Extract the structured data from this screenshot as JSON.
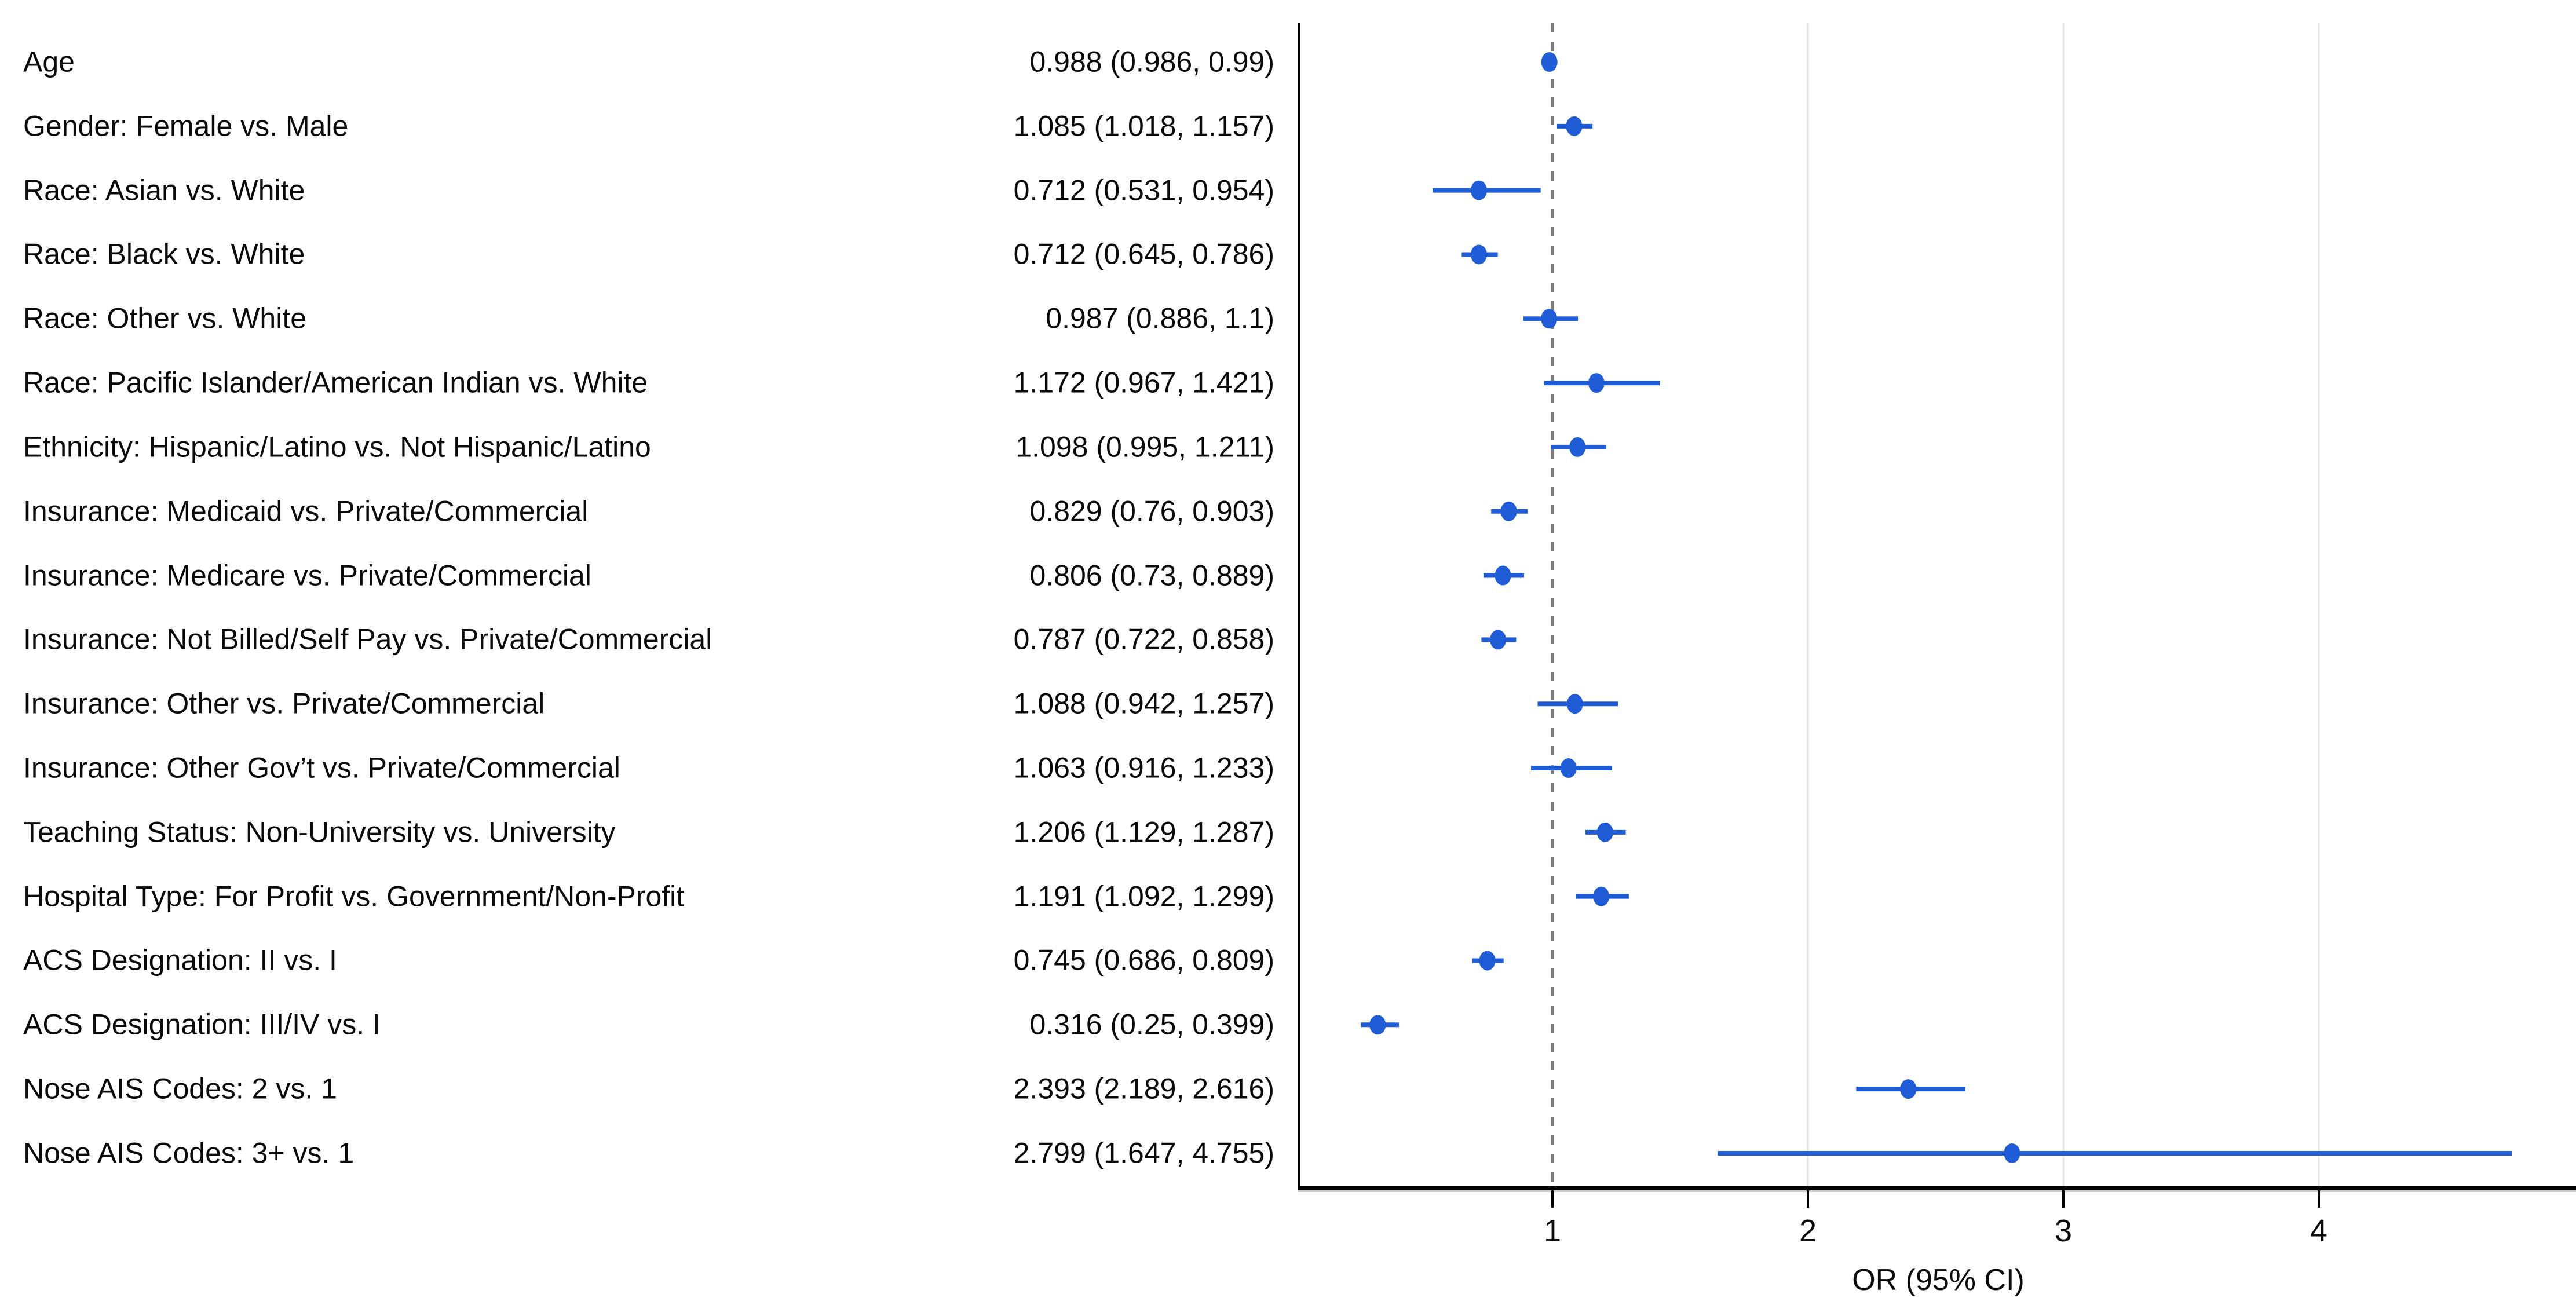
{
  "chart_data": {
    "type": "scatter",
    "variant": "forest-plot",
    "title": "",
    "xlabel": "OR (95% CI)",
    "ylabel": "",
    "x_ticks": [
      1,
      2,
      3,
      4
    ],
    "xlim": [
      0.01,
      5.0
    ],
    "reference_line_x": 1,
    "grid": {
      "vertical_gridlines_at": [
        2,
        3,
        4
      ],
      "dashed_reference_at": 1,
      "horizontal_gridlines": false
    },
    "legend_position": "none",
    "rows": [
      {
        "label": "Age",
        "value_label": "0.988 (0.986, 0.99)",
        "or": 0.988,
        "ci_low": 0.986,
        "ci_high": 0.99
      },
      {
        "label": "Gender: Female vs. Male",
        "value_label": "1.085 (1.018, 1.157)",
        "or": 1.085,
        "ci_low": 1.018,
        "ci_high": 1.157
      },
      {
        "label": "Race: Asian vs. White",
        "value_label": "0.712 (0.531, 0.954)",
        "or": 0.712,
        "ci_low": 0.531,
        "ci_high": 0.954
      },
      {
        "label": "Race: Black vs. White",
        "value_label": "0.712 (0.645, 0.786)",
        "or": 0.712,
        "ci_low": 0.645,
        "ci_high": 0.786
      },
      {
        "label": "Race: Other vs. White",
        "value_label": "0.987 (0.886, 1.1)",
        "or": 0.987,
        "ci_low": 0.886,
        "ci_high": 1.1
      },
      {
        "label": "Race: Pacific Islander/American Indian vs. White",
        "value_label": "1.172 (0.967, 1.421)",
        "or": 1.172,
        "ci_low": 0.967,
        "ci_high": 1.421
      },
      {
        "label": "Ethnicity: Hispanic/Latino vs. Not Hispanic/Latino",
        "value_label": "1.098 (0.995, 1.211)",
        "or": 1.098,
        "ci_low": 0.995,
        "ci_high": 1.211
      },
      {
        "label": "Insurance: Medicaid vs. Private/Commercial",
        "value_label": "0.829 (0.76, 0.903)",
        "or": 0.829,
        "ci_low": 0.76,
        "ci_high": 0.903
      },
      {
        "label": "Insurance: Medicare vs. Private/Commercial",
        "value_label": "0.806 (0.73, 0.889)",
        "or": 0.806,
        "ci_low": 0.73,
        "ci_high": 0.889
      },
      {
        "label": "Insurance: Not Billed/Self Pay vs. Private/Commercial",
        "value_label": "0.787 (0.722, 0.858)",
        "or": 0.787,
        "ci_low": 0.722,
        "ci_high": 0.858
      },
      {
        "label": "Insurance: Other vs. Private/Commercial",
        "value_label": "1.088 (0.942, 1.257)",
        "or": 1.088,
        "ci_low": 0.942,
        "ci_high": 1.257
      },
      {
        "label": "Insurance: Other Gov’t vs. Private/Commercial",
        "value_label": "1.063 (0.916, 1.233)",
        "or": 1.063,
        "ci_low": 0.916,
        "ci_high": 1.233
      },
      {
        "label": "Teaching Status: Non-University vs. University",
        "value_label": "1.206 (1.129, 1.287)",
        "or": 1.206,
        "ci_low": 1.129,
        "ci_high": 1.287
      },
      {
        "label": "Hospital Type: For Profit vs. Government/Non-Profit",
        "value_label": "1.191 (1.092, 1.299)",
        "or": 1.191,
        "ci_low": 1.092,
        "ci_high": 1.299
      },
      {
        "label": "ACS Designation: II vs. I",
        "value_label": "0.745 (0.686, 0.809)",
        "or": 0.745,
        "ci_low": 0.686,
        "ci_high": 0.809
      },
      {
        "label": "ACS Designation: III/IV vs. I",
        "value_label": "0.316 (0.25, 0.399)",
        "or": 0.316,
        "ci_low": 0.25,
        "ci_high": 0.399
      },
      {
        "label": "Nose AIS Codes: 2 vs. 1",
        "value_label": "2.393 (2.189, 2.616)",
        "or": 2.393,
        "ci_low": 2.189,
        "ci_high": 2.616
      },
      {
        "label": "Nose AIS Codes: 3+ vs. 1",
        "value_label": "2.799 (1.647, 4.755)",
        "or": 2.799,
        "ci_low": 1.647,
        "ci_high": 4.755
      }
    ],
    "colors": {
      "point": "#1f5cd6",
      "ci_line": "#1f5cd6",
      "reference_line": "#7d7d7d",
      "gridline": "#e5e5e5",
      "axis": "#000000",
      "axis_shadow": "#c9c9c9",
      "text": "#0a0a0a"
    }
  }
}
